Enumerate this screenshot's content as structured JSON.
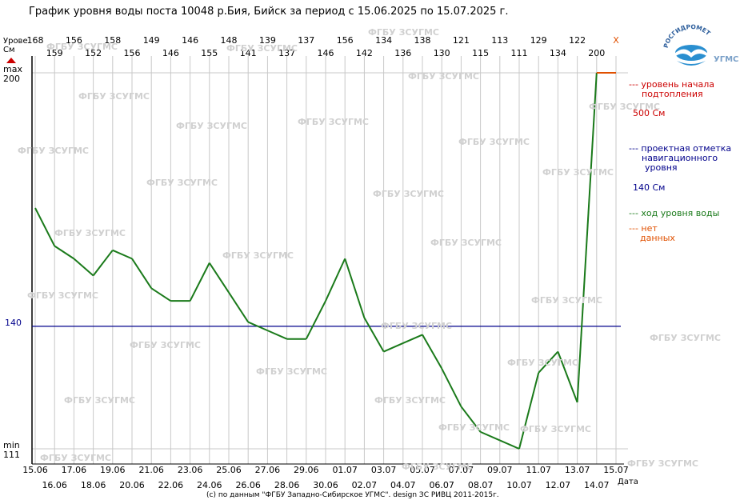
{
  "title": "График уровня воды поста 10048 р.Бия, Бийск за период с 15.06.2025 по 15.07.2025 г.",
  "footer": "(с) по данным \"ФГБУ Западно-Сибирское УГМС\". design ЗС РИВЦ 2011-2015г.",
  "logo": {
    "text": "РОСГИДРОМЕТ",
    "sub": "УГМС"
  },
  "watermark_text": "ФГБУ ЗСУГМС",
  "colors": {
    "level": "#1a7a1a",
    "nav": "#00008b",
    "flood": "#cc0000",
    "nodata": "#e05000",
    "grid": "#c8c8c8"
  },
  "legend": [
    {
      "text": "--- уровень начала подтопления",
      "lines": [
        "--- уровень начала",
        "подтопления"
      ],
      "color": "#cc0000"
    },
    {
      "text": "--- проектная отметка навигационного уровня",
      "lines": [
        "--- проектная отметка",
        "навигационного",
        "уровня"
      ],
      "color": "#00008b"
    },
    {
      "text": "--- ход уровня воды",
      "lines": [
        "--- ход уровня воды"
      ],
      "color": "#1a7a1a"
    },
    {
      "text": "--- нет данных",
      "lines": [
        "--- нет",
        "данных"
      ],
      "color": "#e05000"
    }
  ],
  "flood_value_label": "500 См",
  "nav_value_label": "140 См",
  "chart_data": {
    "type": "line",
    "title": "График уровня воды поста 10048 р.Бия, Бийск за период с 15.06.2025 по 15.07.2025 г.",
    "ylabel": "Урове См",
    "xlabel": "Дата",
    "ylim": [
      111,
      200
    ],
    "y_tick_labels": {
      "max": "max",
      "max_value": "200",
      "min": "min",
      "min_value": "111",
      "nav": "140"
    },
    "x": [
      "15.06",
      "16.06",
      "17.06",
      "18.06",
      "19.06",
      "20.06",
      "21.06",
      "22.06",
      "23.06",
      "24.06",
      "25.06",
      "26.06",
      "27.06",
      "28.06",
      "29.06",
      "30.06",
      "01.07",
      "02.07",
      "03.07",
      "04.07",
      "05.07",
      "06.07",
      "07.07",
      "08.07",
      "09.07",
      "10.07",
      "11.07",
      "12.07",
      "13.07",
      "14.07",
      "15.07"
    ],
    "top_values": [
      "168",
      "159",
      "156",
      "152",
      "158",
      "156",
      "149",
      "146",
      "146",
      "155",
      "148",
      "141",
      "139",
      "137",
      "137",
      "146",
      "156",
      "142",
      "134",
      "136",
      "138",
      "130",
      "121",
      "115",
      "113",
      "111",
      "129",
      "134",
      "122",
      "200",
      "X"
    ],
    "series": [
      {
        "values": [
          168,
          159,
          156,
          152,
          158,
          156,
          149,
          146,
          146,
          155,
          148,
          141,
          139,
          137,
          137,
          146,
          156,
          142,
          134,
          136,
          138,
          130,
          121,
          115,
          113,
          111,
          129,
          134,
          122,
          200,
          null
        ]
      }
    ],
    "nav_level": 140,
    "no_data_segment": [
      200,
      200
    ],
    "grid": true
  }
}
